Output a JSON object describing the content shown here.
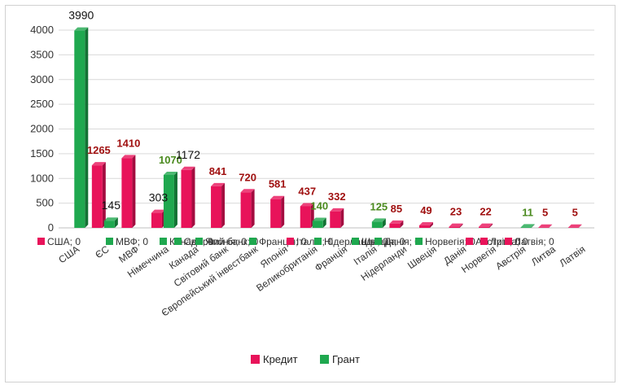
{
  "chart_data": {
    "type": "bar",
    "colors": {
      "credit": "#e8135a",
      "credit_dark": "#a30d40",
      "grant": "#1fa84f",
      "grant_dark": "#137234",
      "credit_label": "#a01010",
      "grant_label": "#4a8a1e"
    },
    "ylim": [
      0,
      4000
    ],
    "yticks": [
      0,
      500,
      1000,
      1500,
      2000,
      2500,
      3000,
      3500,
      4000
    ],
    "grid": true,
    "legend_position": "bottom",
    "categories": [
      "США",
      "ЄС",
      "МВФ",
      "Німеччина",
      "Канада",
      "Світовий банк",
      "Європейський інвестбанк",
      "Японія",
      "Великобританія",
      "Франція",
      "Італія",
      "Нідерланди",
      "Швеція",
      "Данія",
      "Норвегія",
      "Австрія",
      "Литва",
      "Латвія"
    ],
    "series": [
      {
        "name": "Кредит",
        "values": [
          0,
          1265,
          1410,
          303,
          1172,
          841,
          720,
          581,
          437,
          332,
          0,
          85,
          49,
          23,
          22,
          0,
          5,
          5
        ]
      },
      {
        "name": "Грант",
        "values": [
          3990,
          145,
          0,
          1070,
          0,
          0,
          0,
          0,
          140,
          0,
          125,
          0,
          0,
          0,
          0,
          11,
          0,
          0
        ]
      }
    ],
    "data_labels": [
      {
        "text": "3990",
        "category": 0,
        "series": 1,
        "style": "big"
      },
      {
        "text": "1265",
        "category": 1,
        "series": 0,
        "style": "credit"
      },
      {
        "text": "145",
        "category": 1,
        "series": 1,
        "style": "big"
      },
      {
        "text": "1410",
        "category": 2,
        "series": 0,
        "style": "credit"
      },
      {
        "text": "303",
        "category": 3,
        "series": 0,
        "style": "big"
      },
      {
        "text": "1070",
        "category": 3,
        "series": 1,
        "style": "grant"
      },
      {
        "text": "1172",
        "category": 4,
        "series": 0,
        "style": "big"
      },
      {
        "text": "841",
        "category": 5,
        "series": 0,
        "style": "credit"
      },
      {
        "text": "720",
        "category": 6,
        "series": 0,
        "style": "credit"
      },
      {
        "text": "581",
        "category": 7,
        "series": 0,
        "style": "credit"
      },
      {
        "text": "437",
        "category": 8,
        "series": 0,
        "style": "credit"
      },
      {
        "text": "140",
        "category": 8,
        "series": 1,
        "style": "grant"
      },
      {
        "text": "332",
        "category": 9,
        "series": 0,
        "style": "credit"
      },
      {
        "text": "125",
        "category": 10,
        "series": 1,
        "style": "grant"
      },
      {
        "text": "85",
        "category": 11,
        "series": 0,
        "style": "credit"
      },
      {
        "text": "49",
        "category": 12,
        "series": 0,
        "style": "credit"
      },
      {
        "text": "23",
        "category": 13,
        "series": 0,
        "style": "credit"
      },
      {
        "text": "22",
        "category": 14,
        "series": 0,
        "style": "credit"
      },
      {
        "text": "11",
        "category": 15,
        "series": 1,
        "style": "grant"
      },
      {
        "text": "5",
        "category": 16,
        "series": 0,
        "style": "credit"
      },
      {
        "text": "5",
        "category": 17,
        "series": 0,
        "style": "credit"
      }
    ],
    "overlapping_labels": [
      {
        "text": "США; 0",
        "color": "credit"
      },
      {
        "text": "МВФ; 0",
        "color": "grant"
      },
      {
        "text": "Канада; 0",
        "color": "grant"
      },
      {
        "text": "Світовий банк; 0",
        "color": "grant"
      },
      {
        "text": "Японія; 0",
        "color": "grant"
      },
      {
        "text": "Франція; 0",
        "color": "grant"
      },
      {
        "text": "Італія; 0",
        "color": "credit"
      },
      {
        "text": "Нідерланди; 0",
        "color": "grant"
      },
      {
        "text": "Швеція; 0",
        "color": "grant"
      },
      {
        "text": "Данія; 0",
        "color": "grant"
      },
      {
        "text": "Норвегія; 0",
        "color": "grant"
      },
      {
        "text": "Австрія; 0",
        "color": "credit"
      },
      {
        "text": "Литва; 0",
        "color": "credit"
      },
      {
        "text": "Латвія; 0",
        "color": "credit"
      }
    ]
  }
}
